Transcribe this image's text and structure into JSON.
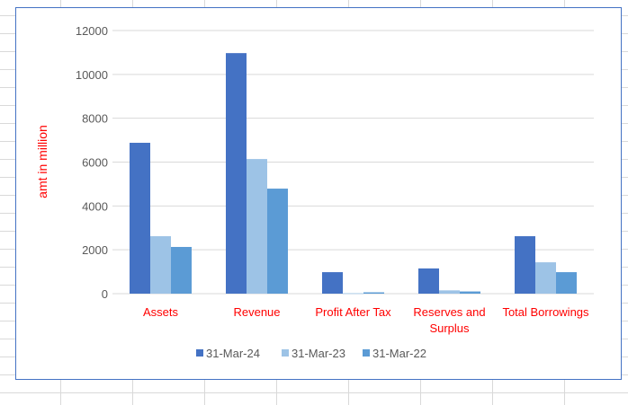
{
  "chart_data": {
    "type": "bar",
    "title": "",
    "xlabel": "",
    "ylabel": "amt in million",
    "ylim": [
      0,
      12000
    ],
    "yticks": [
      "0",
      "2000",
      "4000",
      "6000",
      "8000",
      "10000",
      "12000"
    ],
    "grid": true,
    "legend_position": "bottom",
    "categories": [
      "Assets",
      "Revenue",
      "Profit After Tax",
      "Reserves and Surplus",
      "Total Borrowings"
    ],
    "series": [
      {
        "name": "31-Mar-24",
        "color": "#4472c4",
        "values": [
          6880,
          10970,
          980,
          1150,
          2620
        ]
      },
      {
        "name": "31-Mar-23",
        "color": "#9dc3e6",
        "values": [
          2620,
          6140,
          20,
          150,
          1430
        ]
      },
      {
        "name": "31-Mar-22",
        "color": "#5b9bd5",
        "values": [
          2130,
          4790,
          60,
          100,
          980
        ]
      }
    ],
    "category_label_color": "#ff0000",
    "ylabel_color": "#ff0000"
  }
}
